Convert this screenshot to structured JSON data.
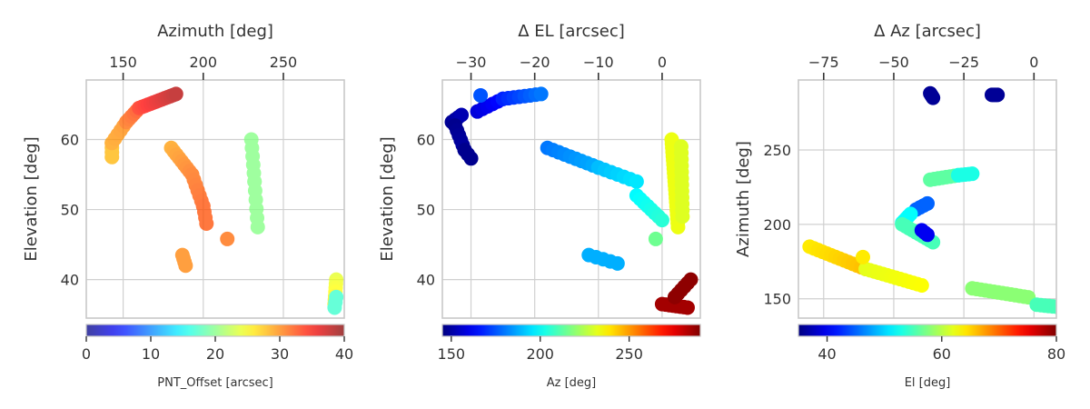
{
  "chart_data": [
    {
      "type": "scatter",
      "title": "",
      "xlabel": "Azimuth [deg]",
      "ylabel": "Elevation [deg]",
      "xlim": [
        127,
        288
      ],
      "ylim": [
        34.5,
        68.5
      ],
      "xticks": [
        150,
        200,
        250
      ],
      "yticks": [
        40,
        50,
        60
      ],
      "x_axis_position": "top",
      "grid": true,
      "colorbar": {
        "label": "PNT_Offset [arcsec]",
        "range": [
          0,
          40
        ],
        "ticks": [
          0,
          10,
          20,
          30,
          40
        ],
        "colormap": "jet",
        "alpha": 0.75
      },
      "color_key": "c",
      "segments": [
        {
          "x0": 143,
          "y0": 57.5,
          "x1": 143,
          "y1": 59.5,
          "n": 4,
          "c0": 28,
          "c1": 28
        },
        {
          "x0": 143,
          "y0": 59.5,
          "x1": 152,
          "y1": 62.5,
          "n": 6,
          "c0": 29,
          "c1": 30
        },
        {
          "x0": 152,
          "y0": 62.5,
          "x1": 160,
          "y1": 64.5,
          "n": 6,
          "c0": 31,
          "c1": 33
        },
        {
          "x0": 160,
          "y0": 64.5,
          "x1": 183,
          "y1": 66.5,
          "n": 14,
          "c0": 34,
          "c1": 38
        },
        {
          "x0": 180,
          "y0": 58.8,
          "x1": 193,
          "y1": 55.0,
          "n": 9,
          "c0": 29,
          "c1": 31
        },
        {
          "x0": 193,
          "y0": 55.0,
          "x1": 200,
          "y1": 50.5,
          "n": 7,
          "c0": 31,
          "c1": 32
        },
        {
          "x0": 200,
          "y0": 50.5,
          "x1": 202,
          "y1": 48.0,
          "n": 4,
          "c0": 32,
          "c1": 32
        },
        {
          "x0": 187,
          "y0": 43.5,
          "x1": 189,
          "y1": 42.0,
          "n": 4,
          "c0": 30,
          "c1": 30
        },
        {
          "x0": 215,
          "y0": 45.8,
          "x1": 215,
          "y1": 45.8,
          "n": 1,
          "c0": 31,
          "c1": 31
        },
        {
          "x0": 230,
          "y0": 60.0,
          "x1": 232,
          "y1": 54.0,
          "n": 6,
          "c0": 20,
          "c1": 20
        },
        {
          "x0": 232,
          "y0": 54.0,
          "x1": 234,
          "y1": 47.5,
          "n": 6,
          "c0": 20,
          "c1": 20
        },
        {
          "x0": 283,
          "y0": 40.0,
          "x1": 282,
          "y1": 36.5,
          "n": 7,
          "c0": 24,
          "c1": 26
        },
        {
          "x0": 282,
          "y0": 36.0,
          "x1": 283,
          "y1": 37.5,
          "n": 3,
          "c0": 17,
          "c1": 17
        }
      ]
    },
    {
      "type": "scatter",
      "title": "",
      "xlabel": "Δ EL [arcsec]",
      "ylabel": "Elevation [deg]",
      "xlim": [
        -34.5,
        6
      ],
      "ylim": [
        34.5,
        68.5
      ],
      "xticks": [
        -30,
        -20,
        -10,
        0
      ],
      "xtick_labels": [
        "−30",
        "−20",
        "−10",
        "0"
      ],
      "yticks": [
        40,
        50,
        60
      ],
      "x_axis_position": "top",
      "grid": true,
      "colorbar": {
        "label": "Az [deg]",
        "range": [
          145,
          290
        ],
        "ticks": [
          150,
          200,
          250
        ],
        "colormap": "jet",
        "alpha": 1
      },
      "color_key": "c",
      "segments": [
        {
          "x0": -33,
          "y0": 62.5,
          "x1": -31.5,
          "y1": 63.5,
          "n": 4,
          "c0": 148,
          "c1": 152
        },
        {
          "x0": -32.5,
          "y0": 62.0,
          "x1": -31,
          "y1": 58.5,
          "n": 6,
          "c0": 147,
          "c1": 150
        },
        {
          "x0": -31,
          "y0": 58.5,
          "x1": -30,
          "y1": 57.3,
          "n": 3,
          "c0": 147,
          "c1": 147
        },
        {
          "x0": -29,
          "y0": 64.0,
          "x1": -25,
          "y1": 65.8,
          "n": 6,
          "c0": 158,
          "c1": 165
        },
        {
          "x0": -25,
          "y0": 65.8,
          "x1": -19,
          "y1": 66.5,
          "n": 8,
          "c0": 168,
          "c1": 180
        },
        {
          "x0": -28.5,
          "y0": 66.3,
          "x1": -28.5,
          "y1": 66.3,
          "n": 1,
          "c0": 175,
          "c1": 175
        },
        {
          "x0": -18,
          "y0": 58.8,
          "x1": -10,
          "y1": 56.0,
          "n": 10,
          "c0": 180,
          "c1": 188
        },
        {
          "x0": -10,
          "y0": 56.0,
          "x1": -4,
          "y1": 54.0,
          "n": 7,
          "c0": 190,
          "c1": 196
        },
        {
          "x0": -4,
          "y0": 52.0,
          "x1": 0,
          "y1": 48.5,
          "n": 8,
          "c0": 199,
          "c1": 205
        },
        {
          "x0": -11.5,
          "y0": 43.5,
          "x1": -7,
          "y1": 42.3,
          "n": 5,
          "c0": 188,
          "c1": 188
        },
        {
          "x0": -1,
          "y0": 45.8,
          "x1": -1,
          "y1": 45.8,
          "n": 1,
          "c0": 215,
          "c1": 215
        },
        {
          "x0": 1.5,
          "y0": 60.0,
          "x1": 2.5,
          "y1": 47.5,
          "n": 22,
          "c0": 233,
          "c1": 233
        },
        {
          "x0": 3.0,
          "y0": 59.0,
          "x1": 3.2,
          "y1": 49.0,
          "n": 12,
          "c0": 231,
          "c1": 231
        },
        {
          "x0": 0,
          "y0": 36.5,
          "x1": 4,
          "y1": 36.0,
          "n": 8,
          "c0": 285,
          "c1": 285
        },
        {
          "x0": 2,
          "y0": 37.5,
          "x1": 4.5,
          "y1": 40.0,
          "n": 6,
          "c0": 288,
          "c1": 288
        }
      ]
    },
    {
      "type": "scatter",
      "title": "",
      "xlabel": "Δ Az [arcsec]",
      "ylabel": "Azimuth [deg]",
      "xlim": [
        -84,
        8
      ],
      "ylim": [
        137,
        297
      ],
      "xticks": [
        -75,
        -50,
        -25,
        0
      ],
      "xtick_labels": [
        "−75",
        "−50",
        "−25",
        "0"
      ],
      "yticks": [
        150,
        200,
        250
      ],
      "x_axis_position": "top",
      "grid": true,
      "colorbar": {
        "label": "El [deg]",
        "range": [
          35,
          80
        ],
        "ticks": [
          40,
          60,
          80
        ],
        "colormap": "jet",
        "alpha": 1
      },
      "color_key": "c",
      "segments": [
        {
          "x0": -37,
          "y0": 288,
          "x1": -36,
          "y1": 285,
          "n": 4,
          "c0": 36,
          "c1": 36
        },
        {
          "x0": -15,
          "y0": 287,
          "x1": -13,
          "y1": 287,
          "n": 4,
          "c0": 36,
          "c1": 36
        },
        {
          "x0": -37,
          "y0": 230,
          "x1": -27,
          "y1": 233,
          "n": 8,
          "c0": 56,
          "c1": 56
        },
        {
          "x0": -27,
          "y0": 233,
          "x1": -22,
          "y1": 234,
          "n": 5,
          "c0": 53,
          "c1": 53
        },
        {
          "x0": -42,
          "y0": 210,
          "x1": -38,
          "y1": 214,
          "n": 4,
          "c0": 45,
          "c1": 45
        },
        {
          "x0": -47,
          "y0": 201,
          "x1": -44,
          "y1": 207,
          "n": 5,
          "c0": 52,
          "c1": 52
        },
        {
          "x0": -47,
          "y0": 200,
          "x1": -36,
          "y1": 188,
          "n": 10,
          "c0": 55,
          "c1": 55
        },
        {
          "x0": -40,
          "y0": 196,
          "x1": -38,
          "y1": 193,
          "n": 3,
          "c0": 40,
          "c1": 40
        },
        {
          "x0": -80,
          "y0": 185,
          "x1": -60,
          "y1": 170,
          "n": 14,
          "c0": 64,
          "c1": 66
        },
        {
          "x0": -60,
          "y0": 170,
          "x1": -40,
          "y1": 159,
          "n": 14,
          "c0": 62,
          "c1": 63
        },
        {
          "x0": -61,
          "y0": 178,
          "x1": -61,
          "y1": 178,
          "n": 1,
          "c0": 64,
          "c1": 64
        },
        {
          "x0": -22,
          "y0": 157,
          "x1": -2,
          "y1": 151,
          "n": 14,
          "c0": 58,
          "c1": 58
        },
        {
          "x0": 1,
          "y0": 146,
          "x1": 11,
          "y1": 144,
          "n": 8,
          "c0": 55,
          "c1": 55
        }
      ]
    }
  ]
}
